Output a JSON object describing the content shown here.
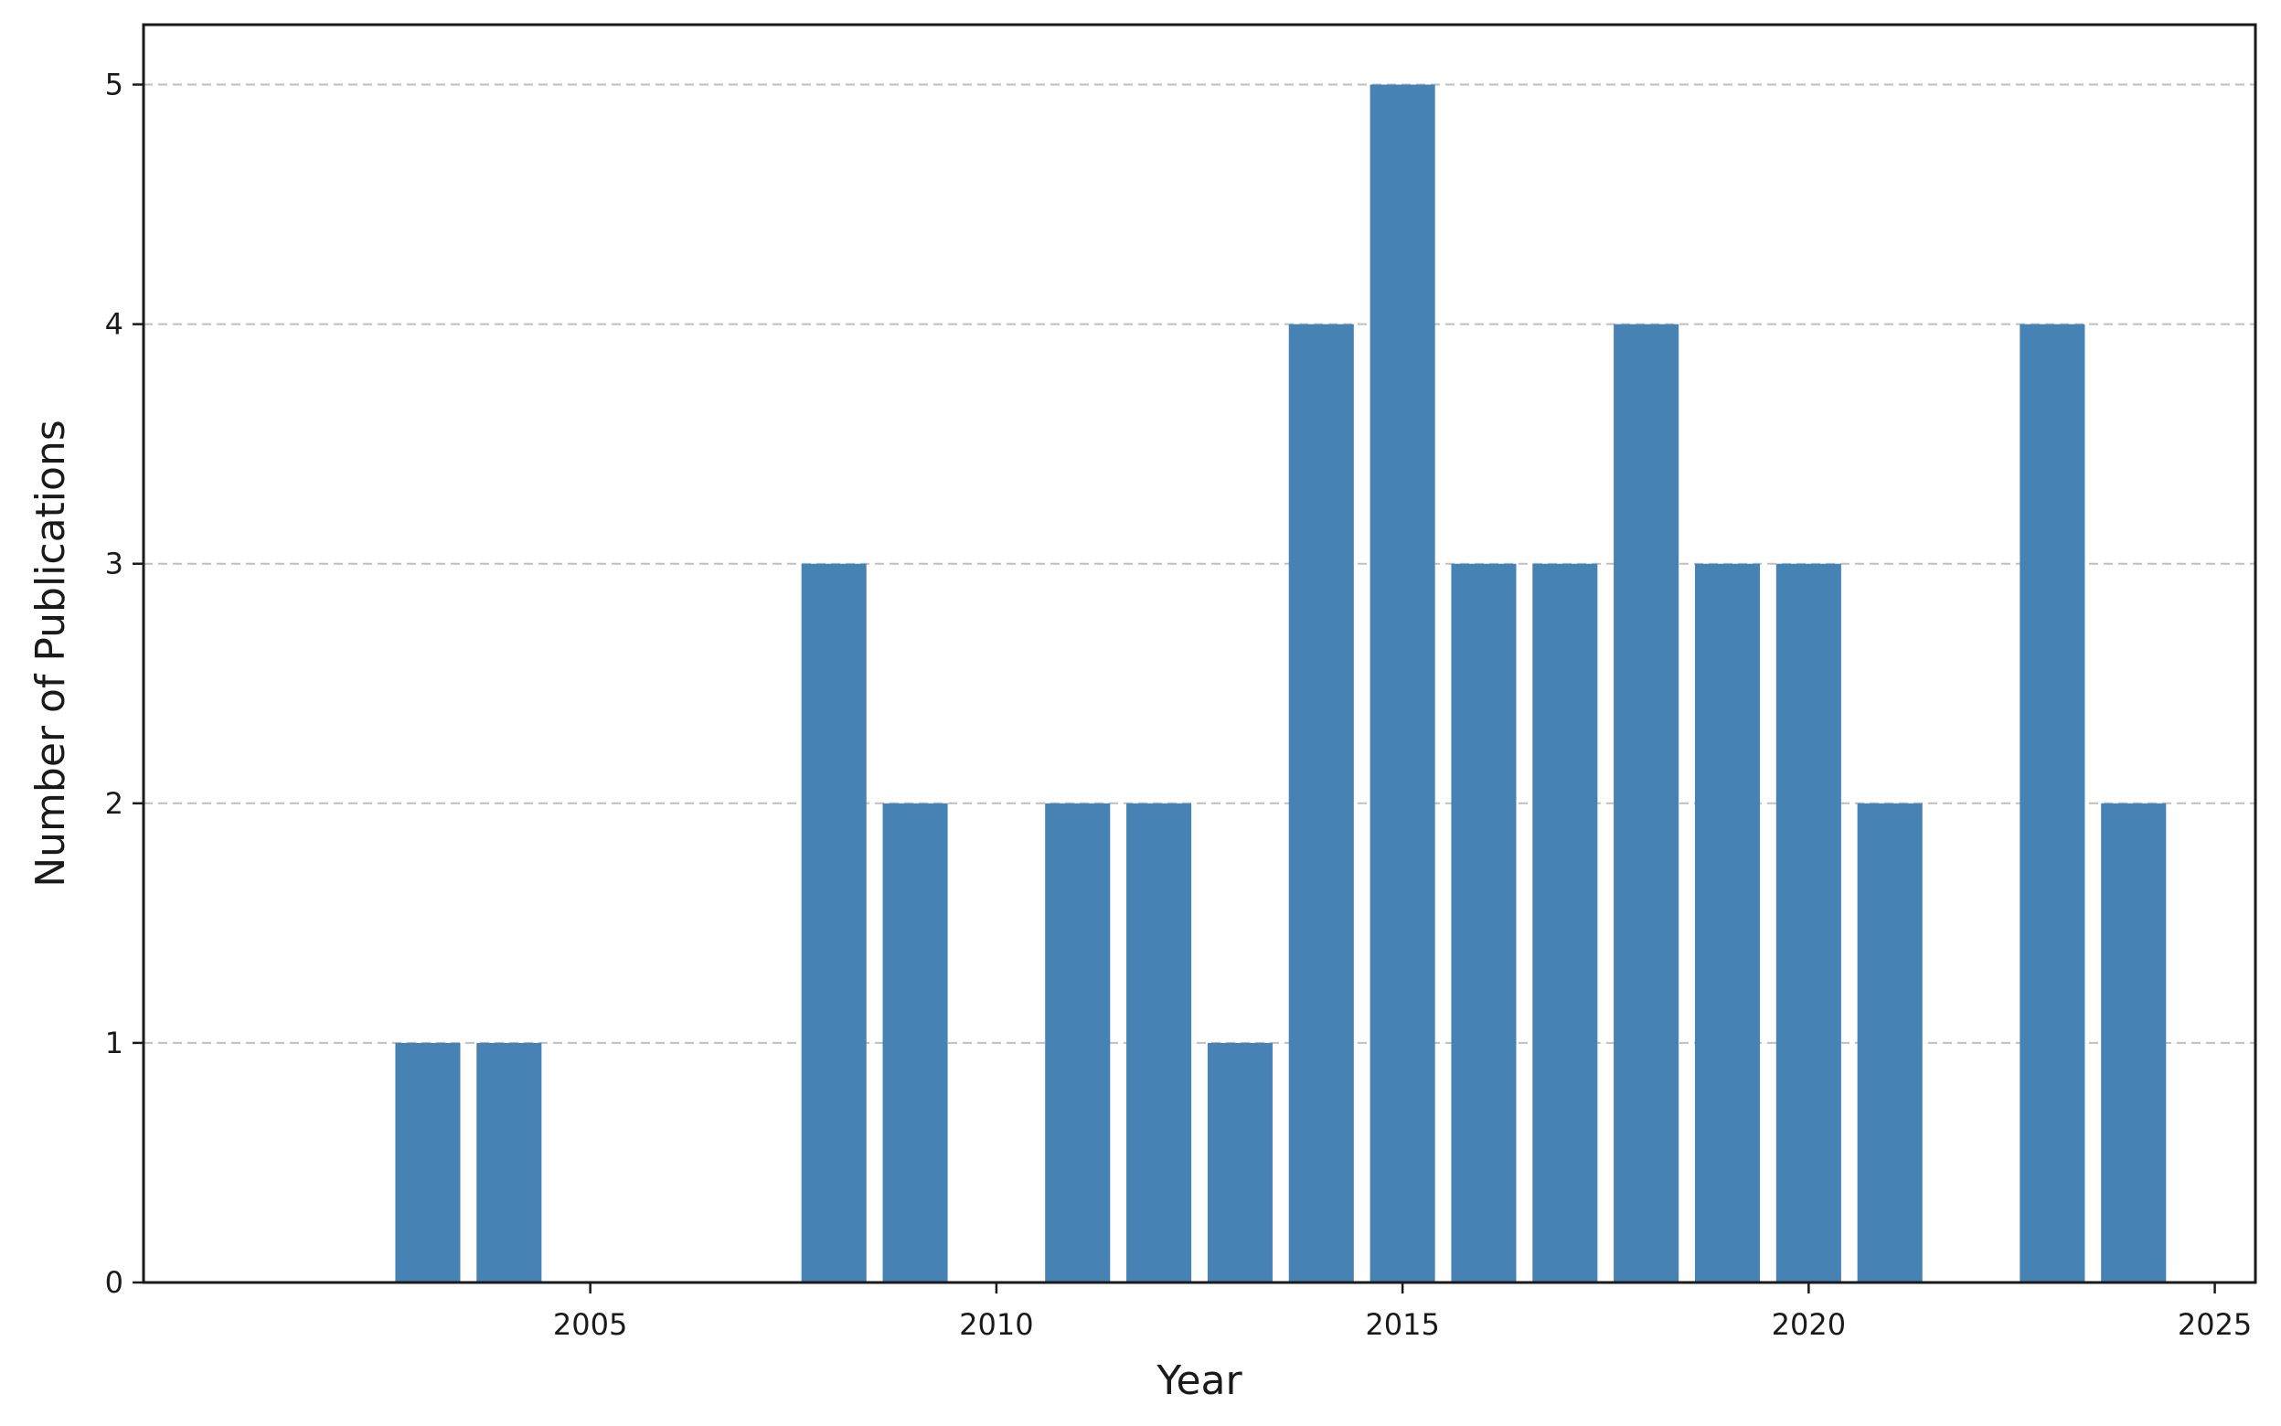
{
  "chart_data": {
    "type": "bar",
    "title": "",
    "xlabel": "Year",
    "ylabel": "Number of Publications",
    "x": [
      2003,
      2004,
      2008,
      2009,
      2011,
      2012,
      2013,
      2014,
      2015,
      2016,
      2017,
      2018,
      2019,
      2020,
      2021,
      2023,
      2024
    ],
    "values": [
      1,
      1,
      3,
      2,
      2,
      2,
      1,
      4,
      5,
      3,
      3,
      4,
      3,
      3,
      2,
      4,
      2
    ],
    "xlim": [
      1999.5,
      2025.5
    ],
    "ylim": [
      0,
      5.25
    ],
    "xticks": [
      2005,
      2010,
      2015,
      2020,
      2025
    ],
    "yticks": [
      0,
      1,
      2,
      3,
      4,
      5
    ],
    "grid": "y-dashed",
    "legend": "none",
    "bar_color": "#4682b4"
  }
}
